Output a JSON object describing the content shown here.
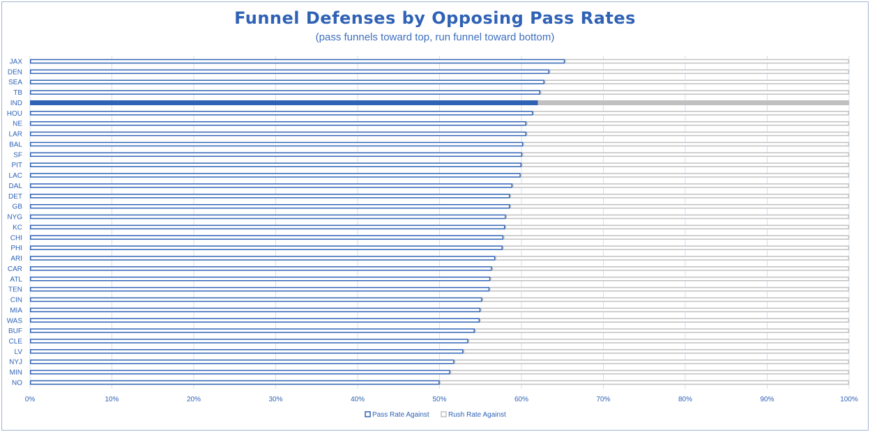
{
  "header": {
    "title": "Funnel Defenses by Opposing Pass Rates",
    "subtitle": "(pass funnels toward top, run funnel toward bottom)"
  },
  "chart_data": {
    "type": "bar",
    "orientation": "horizontal",
    "stacked": true,
    "title": "Funnel Defenses by Opposing Pass Rates",
    "subtitle": "(pass funnels toward top, run funnel toward bottom)",
    "xlabel": "",
    "ylabel": "",
    "xlim": [
      0,
      100
    ],
    "x_ticks": [
      "0%",
      "10%",
      "20%",
      "30%",
      "40%",
      "50%",
      "60%",
      "70%",
      "80%",
      "90%",
      "100%"
    ],
    "grid": "vertical",
    "legend_position": "bottom",
    "highlight_category": "IND",
    "categories": [
      "JAX",
      "DEN",
      "SEA",
      "TB",
      "IND",
      "HOU",
      "NE",
      "LAR",
      "BAL",
      "SF",
      "PIT",
      "LAC",
      "DAL",
      "DET",
      "GB",
      "NYG",
      "KC",
      "CHI",
      "PHI",
      "ARI",
      "CAR",
      "ATL",
      "TEN",
      "CIN",
      "MIA",
      "WAS",
      "BUF",
      "CLE",
      "LV",
      "NYJ",
      "MIN",
      "NO"
    ],
    "series": [
      {
        "name": "Pass Rate Against",
        "color": "#2f62b5",
        "values": [
          65.3,
          63.4,
          62.8,
          62.3,
          62.0,
          61.4,
          60.6,
          60.6,
          60.2,
          60.1,
          60.0,
          59.9,
          58.9,
          58.6,
          58.6,
          58.1,
          58.0,
          57.8,
          57.7,
          56.8,
          56.4,
          56.2,
          56.1,
          55.2,
          55.0,
          54.9,
          54.3,
          53.5,
          52.9,
          51.8,
          51.3,
          50.0
        ]
      },
      {
        "name": "Rush Rate Against",
        "color": "#c0c0c0",
        "values": [
          34.7,
          36.6,
          37.2,
          37.7,
          38.0,
          38.6,
          39.4,
          39.4,
          39.8,
          39.9,
          40.0,
          40.1,
          41.1,
          41.4,
          41.4,
          41.9,
          42.0,
          42.2,
          42.3,
          43.2,
          43.6,
          43.8,
          43.9,
          44.8,
          45.0,
          45.1,
          45.7,
          46.5,
          47.1,
          48.2,
          48.7,
          50.0
        ]
      }
    ]
  }
}
